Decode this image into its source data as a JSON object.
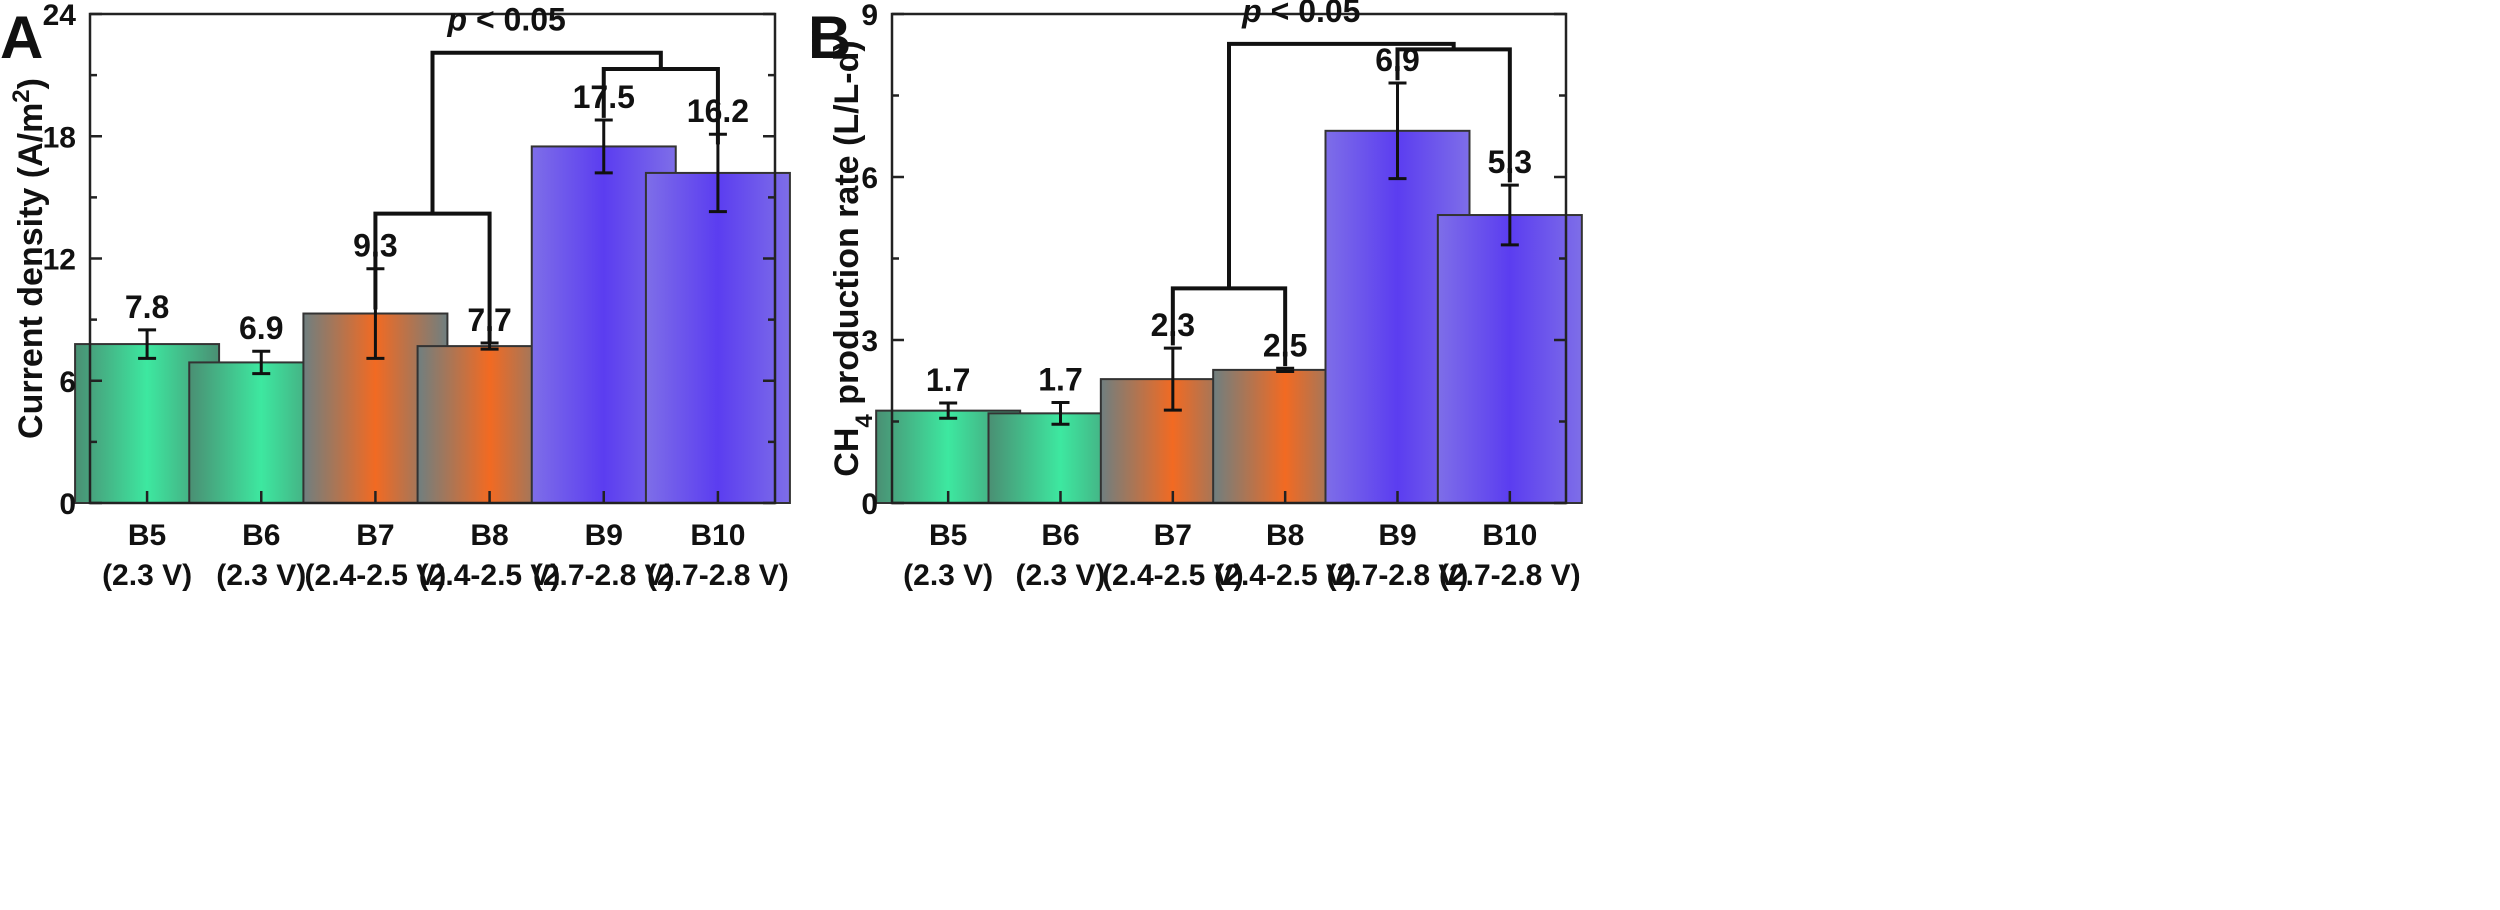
{
  "chart_data": [
    {
      "type": "bar",
      "panel_label": "A",
      "ylabel": "Current density (A/m",
      "ylabel_sup": "2",
      "ylabel_suffix": ")",
      "ylim": [
        0,
        24
      ],
      "yticks": [
        0,
        6,
        12,
        18,
        24
      ],
      "categories": [
        {
          "name": "B5",
          "sub": "(2.3 V)"
        },
        {
          "name": "B6",
          "sub": "(2.3 V)"
        },
        {
          "name": "B7",
          "sub": "(2.4-2.5 V)"
        },
        {
          "name": "B8",
          "sub": "(2.4-2.5 V)"
        },
        {
          "name": "B9",
          "sub": "(2.7-2.8 V)"
        },
        {
          "name": "B10",
          "sub": "(2.7-2.8 V)"
        }
      ],
      "values": [
        7.8,
        6.9,
        9.3,
        7.7,
        17.5,
        16.2
      ],
      "errors": [
        0.7,
        0.55,
        2.2,
        0.15,
        1.3,
        1.9
      ],
      "value_labels": [
        "7.8",
        "6.9",
        "9.3",
        "7.7",
        "17.5",
        "16.2"
      ],
      "bar_colors": [
        "green",
        "green",
        "orange",
        "orange",
        "blue",
        "blue"
      ],
      "significance": {
        "label_prefix": "p",
        "label_rest": " < 0.05"
      }
    },
    {
      "type": "bar",
      "panel_label": "B",
      "ylabel_prefix": "CH",
      "ylabel_sub": "4",
      "ylabel": " production rate (L/L-d)",
      "ylim": [
        0,
        9
      ],
      "yticks": [
        0,
        3,
        6,
        9
      ],
      "categories": [
        {
          "name": "B5",
          "sub": "(2.3 V)"
        },
        {
          "name": "B6",
          "sub": "(2.3 V)"
        },
        {
          "name": "B7",
          "sub": "(2.4-2.5 V)"
        },
        {
          "name": "B8",
          "sub": "(2.4-2.5 V)"
        },
        {
          "name": "B9",
          "sub": "(2.7-2.8 V)"
        },
        {
          "name": "B10",
          "sub": "(2.7-2.8 V)"
        }
      ],
      "values": [
        1.7,
        1.65,
        2.28,
        2.45,
        6.85,
        5.3
      ],
      "errors": [
        0.14,
        0.2,
        0.57,
        0.03,
        0.88,
        0.55
      ],
      "value_labels": [
        "1.7",
        "1.7",
        "2.3",
        "2.5",
        "6.9",
        "5.3"
      ],
      "bar_colors": [
        "green",
        "green",
        "orange",
        "orange",
        "blue",
        "blue"
      ],
      "significance": {
        "label_prefix": "p",
        "label_rest": " < 0.05"
      }
    }
  ],
  "colors": {
    "green_core": "#3de8a0",
    "green_edge": "#4a8f73",
    "orange_core": "#f26a22",
    "orange_edge": "#6f7f80",
    "blue_core": "#5b3df0",
    "blue_edge": "#7e6ee8"
  }
}
